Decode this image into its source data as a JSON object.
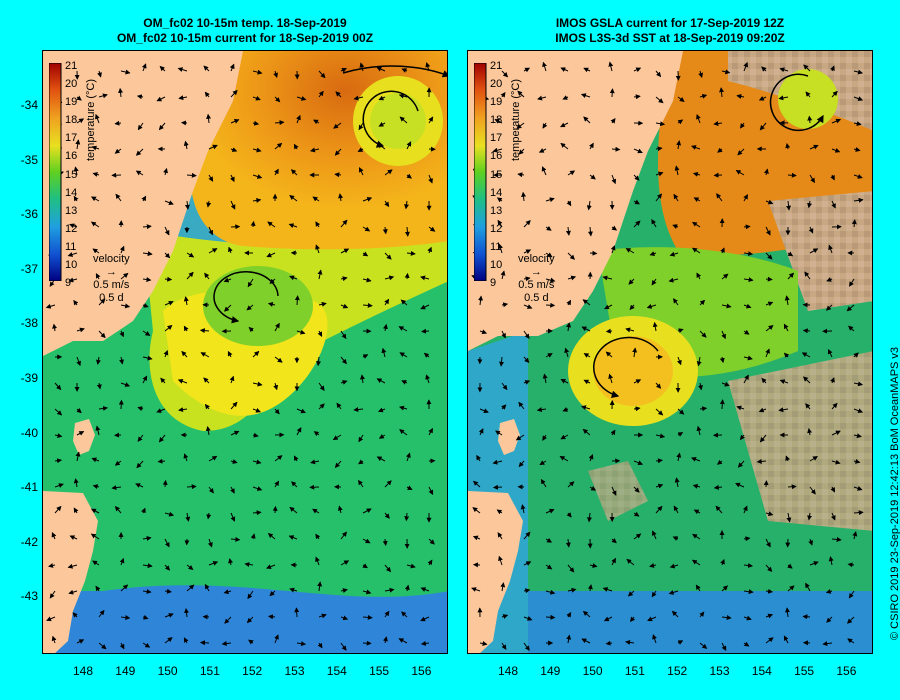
{
  "left_panel": {
    "title_line1": "OM_fc02 10-15m temp. 18-Sep-2019",
    "title_line2": "OM_fc02 10-15m current for 18-Sep-2019 00Z",
    "colorbar_label": "temperature (°C)",
    "velocity_label": "velocity",
    "velocity_scale": "0.5 m/s",
    "velocity_time": "0.5 d"
  },
  "right_panel": {
    "title_line1": "IMOS GSLA current for 17-Sep-2019 12Z",
    "title_line2": "IMOS L3S-3d SST at 18-Sep-2019 09:20Z",
    "colorbar_label": "temperature (°C)",
    "velocity_label": "velocity",
    "velocity_scale": "0.5 m/s",
    "velocity_time": "0.5 d"
  },
  "colorbar_ticks": [
    "21",
    "20",
    "19",
    "18",
    "17",
    "16",
    "15",
    "14",
    "13",
    "12",
    "11",
    "10",
    "9"
  ],
  "y_axis_labels": [
    "-34",
    "-35",
    "-36",
    "-37",
    "-38",
    "-39",
    "-40",
    "-41",
    "-42",
    "-43"
  ],
  "x_axis_labels_left": [
    "148",
    "149",
    "150",
    "151",
    "152",
    "153",
    "154",
    "155",
    "156"
  ],
  "x_axis_labels_right": [
    "148",
    "149",
    "150",
    "151",
    "152",
    "153",
    "154",
    "155",
    "156"
  ],
  "credit": "© CSIRO 2019  23-Sep-2019 12:42:13 BoM OceanMAPS v3",
  "colors": {
    "background": "#00ffff",
    "land": "#fcc89b",
    "missing_data": "#c8a882",
    "warm": "#e07a10",
    "cool": "#2a8ed0"
  }
}
